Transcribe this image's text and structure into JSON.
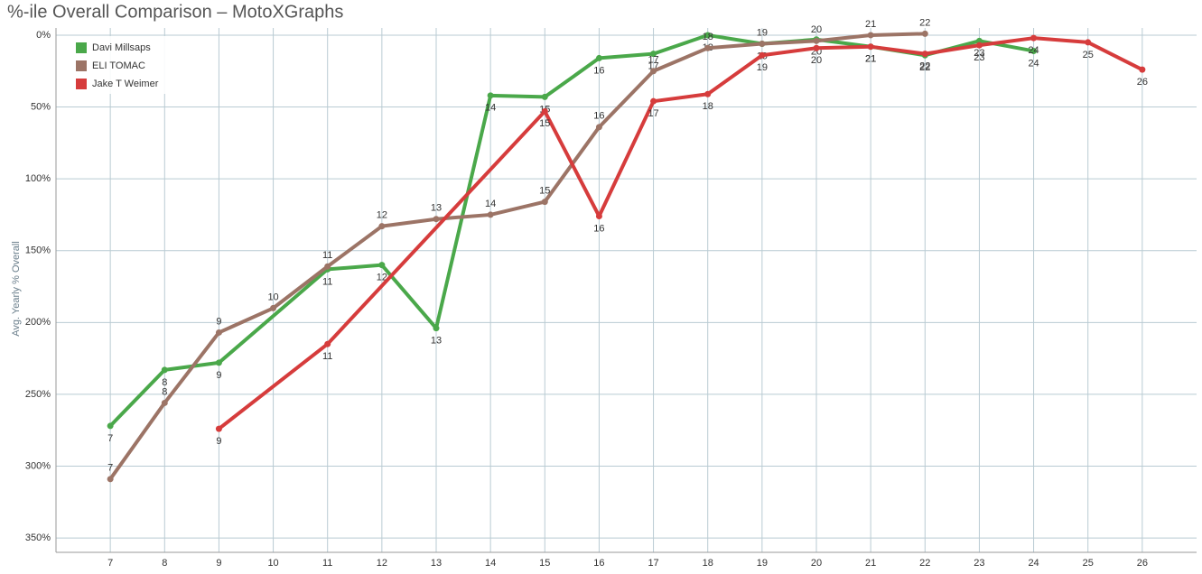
{
  "chart_data": {
    "type": "line",
    "title": "%-ile Overall Comparison – MotoXGraphs",
    "y_label": "Avg. Yearly % Overall",
    "xlim": [
      6,
      27
    ],
    "xticks": [
      7,
      8,
      9,
      10,
      11,
      12,
      13,
      14,
      15,
      16,
      17,
      18,
      19,
      20,
      21,
      22,
      23,
      24,
      25,
      26
    ],
    "ylim": [
      -5,
      360
    ],
    "y_reversed": true,
    "yticks": [
      {
        "value": 0,
        "label": "0%"
      },
      {
        "value": 50,
        "label": "50%"
      },
      {
        "value": 100,
        "label": "100%"
      },
      {
        "value": 150,
        "label": "150%"
      },
      {
        "value": 200,
        "label": "200%"
      },
      {
        "value": 250,
        "label": "250%"
      },
      {
        "value": 300,
        "label": "300%"
      },
      {
        "value": 350,
        "label": "350%"
      }
    ],
    "grid": true,
    "legend": "top-left",
    "series": [
      {
        "name": "Davi Millsaps",
        "color": "#4aa84a",
        "x": [
          7,
          8,
          9,
          11,
          12,
          13,
          14,
          15,
          16,
          17,
          18,
          19,
          20,
          21,
          22,
          23,
          24
        ],
        "values": [
          272,
          233,
          228,
          163,
          160,
          204,
          42,
          43,
          16,
          13,
          0,
          6,
          3,
          8,
          14,
          4,
          11
        ]
      },
      {
        "name": "ELI TOMAC",
        "color": "#9c7466",
        "x": [
          7,
          8,
          9,
          10,
          11,
          12,
          13,
          14,
          15,
          16,
          17,
          18,
          19,
          20,
          21,
          22
        ],
        "values": [
          309,
          256,
          207,
          190,
          161,
          133,
          128,
          125,
          116,
          64,
          25,
          9,
          6,
          4,
          0,
          -1
        ]
      },
      {
        "name": "Jake T Weimer",
        "color": "#d63c3c",
        "x": [
          9,
          11,
          15,
          16,
          17,
          18,
          19,
          20,
          21,
          22,
          23,
          24,
          25,
          26
        ],
        "values": [
          274,
          215,
          53,
          126,
          46,
          41,
          14,
          9,
          8,
          13,
          7,
          2,
          5,
          24
        ]
      }
    ]
  }
}
